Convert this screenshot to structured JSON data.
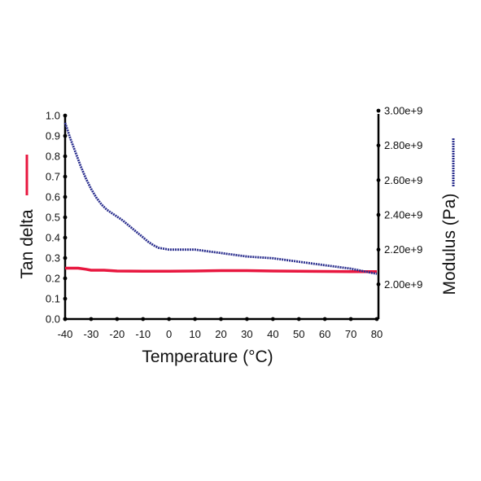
{
  "chart_data": {
    "type": "line",
    "xlabel": "Temperature (°C)",
    "ylabel_left": "Tan delta",
    "ylabel_right": "Modulus (Pa)",
    "xlim": [
      -40,
      80
    ],
    "ylim_left": [
      0.0,
      1.0
    ],
    "ylim_right": [
      1800000000.0,
      3000000000.0
    ],
    "x_ticks": [
      "-40",
      "-30",
      "-20",
      "-10",
      "0",
      "10",
      "20",
      "30",
      "40",
      "50",
      "60",
      "70",
      "80"
    ],
    "y_left_ticks": [
      "0.0",
      "0.1",
      "0.2",
      "0.3",
      "0.4",
      "0.5",
      "0.6",
      "0.7",
      "0.8",
      "0.9",
      "1.0"
    ],
    "y_right_ticks": [
      "2.00e+9",
      "2.20e+9",
      "2.40e+9",
      "2.60e+9",
      "2.80e+9",
      "3.00e+9"
    ],
    "grid": false,
    "series": [
      {
        "name": "Tan delta",
        "axis": "left",
        "color": "#e8173f",
        "x": [
          -40,
          -35,
          -32,
          -30,
          -25,
          -20,
          -10,
          0,
          10,
          20,
          30,
          40,
          50,
          60,
          70,
          80
        ],
        "values": [
          0.25,
          0.25,
          0.245,
          0.24,
          0.24,
          0.236,
          0.235,
          0.235,
          0.236,
          0.238,
          0.238,
          0.236,
          0.235,
          0.234,
          0.233,
          0.233
        ]
      },
      {
        "name": "Modulus (Pa)",
        "axis": "right",
        "color": "#2b2f8e",
        "x": [
          -40,
          -38,
          -36,
          -34,
          -32,
          -30,
          -28,
          -26,
          -24,
          -22,
          -20,
          -18,
          -16,
          -14,
          -12,
          -10,
          -8,
          -6,
          -4,
          0,
          10,
          20,
          30,
          40,
          50,
          60,
          70,
          80
        ],
        "values": [
          2930000000.0,
          2840000000.0,
          2760000000.0,
          2680000000.0,
          2610000000.0,
          2550000000.0,
          2500000000.0,
          2460000000.0,
          2430000000.0,
          2410000000.0,
          2390000000.0,
          2370000000.0,
          2345000000.0,
          2320000000.0,
          2295000000.0,
          2270000000.0,
          2245000000.0,
          2225000000.0,
          2210000000.0,
          2200000000.0,
          2200000000.0,
          2180000000.0,
          2160000000.0,
          2150000000.0,
          2130000000.0,
          2110000000.0,
          2090000000.0,
          2060000000.0
        ]
      }
    ]
  }
}
